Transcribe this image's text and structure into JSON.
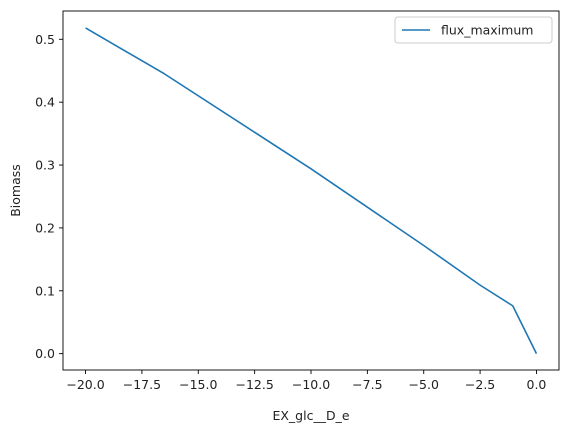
{
  "chart_data": {
    "type": "line",
    "xlabel": "EX_glc__D_e",
    "ylabel": "Biomass",
    "xlim": [
      -21,
      1
    ],
    "ylim": [
      -0.026,
      0.545
    ],
    "xticks": [
      -20.0,
      -17.5,
      -15.0,
      -12.5,
      -10.0,
      -7.5,
      -5.0,
      -2.5,
      0.0
    ],
    "xtick_labels": [
      "−20.0",
      "−17.5",
      "−15.0",
      "−12.5",
      "−10.0",
      "−7.5",
      "−5.0",
      "−2.5",
      "0.0"
    ],
    "yticks": [
      0.0,
      0.1,
      0.2,
      0.3,
      0.4,
      0.5
    ],
    "ytick_labels": [
      "0.0",
      "0.1",
      "0.2",
      "0.3",
      "0.4",
      "0.5"
    ],
    "grid": false,
    "legend_position": "top-right",
    "series": [
      {
        "name": "flux_maximum",
        "color": "#1f77b4",
        "x": [
          -20.0,
          -16.5,
          -10.0,
          -5.0,
          -2.5,
          -1.05,
          0.0
        ],
        "y": [
          0.518,
          0.445,
          0.294,
          0.172,
          0.109,
          0.076,
          0.0
        ]
      }
    ]
  }
}
